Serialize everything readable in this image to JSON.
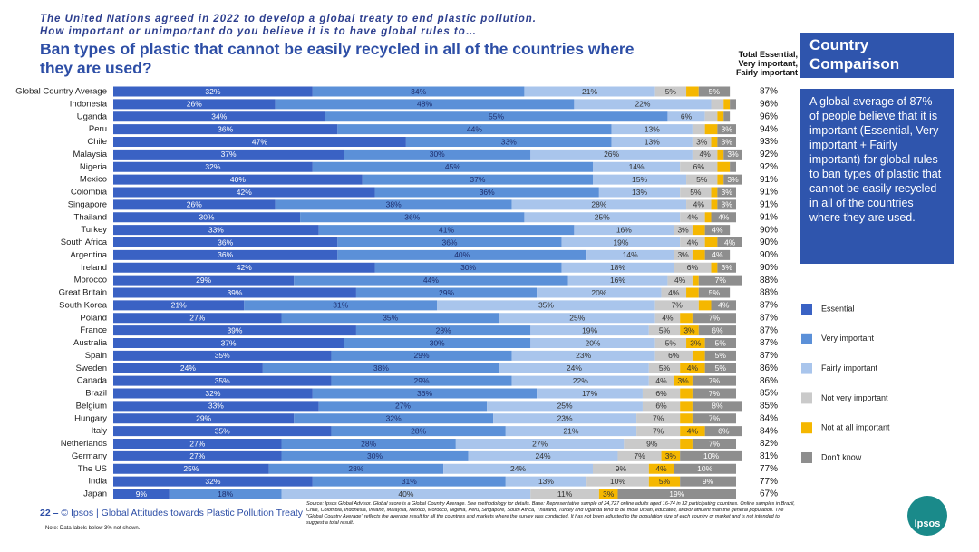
{
  "header": {
    "lines": [
      "The United Nations agreed in 2022 to develop a global treaty to end plastic pollution.",
      "How important or unimportant do you believe it is to have global rules to…"
    ],
    "title": "Ban types of plastic that cannot be easily recycled in all of the countries where they are used?"
  },
  "chart_data": {
    "type": "bar",
    "orientation": "horizontal",
    "stacked": true,
    "categories": [
      "Global Country Average",
      "Indonesia",
      "Uganda",
      "Peru",
      "Chile",
      "Malaysia",
      "Nigeria",
      "Mexico",
      "Colombia",
      "Singapore",
      "Thailand",
      "Turkey",
      "South Africa",
      "Argentina",
      "Ireland",
      "Morocco",
      "Great Britain",
      "South Korea",
      "Poland",
      "France",
      "Australia",
      "Spain",
      "Sweden",
      "Canada",
      "Brazil",
      "Belgium",
      "Hungary",
      "Italy",
      "Netherlands",
      "Germany",
      "The US",
      "India",
      "Japan"
    ],
    "series": [
      {
        "name": "Essential",
        "color": "#3a62c4",
        "label_color": "#ffffff",
        "values": [
          32,
          26,
          34,
          36,
          47,
          37,
          32,
          40,
          42,
          26,
          30,
          33,
          36,
          36,
          42,
          29,
          39,
          21,
          27,
          39,
          37,
          35,
          24,
          35,
          32,
          33,
          29,
          35,
          27,
          27,
          25,
          32,
          9
        ],
        "value_labels": [
          "32%",
          "26%",
          "34%",
          "36%",
          "47%",
          "37%",
          "32%",
          "40%",
          "42%",
          "26%",
          "30%",
          "33%",
          "36%",
          "36%",
          "42%",
          "29%",
          "39%",
          "21%",
          "27%",
          "39%",
          "37%",
          "35%",
          "24%",
          "35%",
          "32%",
          "33%",
          "29%",
          "35%",
          "27%",
          "27%",
          "25%",
          "32%",
          "9%"
        ]
      },
      {
        "name": "Very important",
        "color": "#5b90d8",
        "label_color": "#1f2f6e",
        "values": [
          34,
          48,
          55,
          44,
          33,
          30,
          45,
          37,
          36,
          38,
          36,
          41,
          36,
          40,
          30,
          44,
          29,
          31,
          35,
          28,
          30,
          29,
          38,
          29,
          36,
          27,
          32,
          28,
          28,
          30,
          28,
          31,
          18
        ],
        "value_labels": [
          "34%",
          "48%",
          "55%",
          "44%",
          "33%",
          "30%",
          "45%",
          "37%",
          "36%",
          "38%",
          "36%",
          "41%",
          "36%",
          "40%",
          "30%",
          "44%",
          "29%",
          "31%",
          "35%",
          "28%",
          "30%",
          "29%",
          "38%",
          "29%",
          "36%",
          "27%",
          "32%",
          "28%",
          "28%",
          "30%",
          "28%",
          "31%",
          "18%"
        ]
      },
      {
        "name": "Fairly important",
        "color": "#a9c5ec",
        "label_color": "#333333",
        "values": [
          21,
          22,
          6,
          13,
          13,
          26,
          14,
          15,
          13,
          28,
          25,
          16,
          19,
          14,
          18,
          16,
          20,
          35,
          25,
          19,
          20,
          23,
          24,
          22,
          17,
          25,
          23,
          21,
          27,
          24,
          24,
          13,
          40
        ],
        "value_labels": [
          "21%",
          "22%",
          "6%",
          "13%",
          "13%",
          "26%",
          "14%",
          "15%",
          "13%",
          "28%",
          "25%",
          "16%",
          "19%",
          "14%",
          "18%",
          "16%",
          "20%",
          "35%",
          "25%",
          "19%",
          "20%",
          "23%",
          "24%",
          "22%",
          "17%",
          "25%",
          "23%",
          "21%",
          "27%",
          "24%",
          "24%",
          "13%",
          "40%"
        ]
      },
      {
        "name": "Not very important",
        "color": "#cacaca",
        "label_color": "#333333",
        "values": [
          5,
          2,
          2,
          2,
          3,
          4,
          6,
          5,
          5,
          4,
          4,
          3,
          4,
          3,
          6,
          4,
          4,
          7,
          4,
          5,
          5,
          6,
          5,
          4,
          6,
          6,
          7,
          7,
          9,
          7,
          9,
          10,
          11
        ],
        "value_labels": [
          "5%",
          null,
          null,
          null,
          "3%",
          "4%",
          "6%",
          "5%",
          "5%",
          "4%",
          "4%",
          "3%",
          "4%",
          "3%",
          "6%",
          "4%",
          "4%",
          "7%",
          "4%",
          "5%",
          "5%",
          "6%",
          "5%",
          "4%",
          "6%",
          "6%",
          "7%",
          "7%",
          "9%",
          "7%",
          "9%",
          "10%",
          "11%"
        ]
      },
      {
        "name": "Not at all important",
        "color": "#f5b700",
        "label_color": "#333333",
        "values": [
          2,
          1,
          1,
          2,
          1,
          1,
          2,
          1,
          1,
          1,
          1,
          2,
          2,
          2,
          1,
          1,
          2,
          2,
          2,
          3,
          3,
          2,
          4,
          3,
          2,
          2,
          2,
          4,
          2,
          3,
          4,
          5,
          3
        ],
        "value_labels": [
          null,
          null,
          null,
          null,
          null,
          null,
          null,
          null,
          null,
          null,
          null,
          null,
          null,
          null,
          null,
          null,
          null,
          null,
          null,
          "3%",
          "3%",
          null,
          "4%",
          "3%",
          null,
          null,
          null,
          "4%",
          null,
          "3%",
          "4%",
          "5%",
          "3%"
        ]
      },
      {
        "name": "Don't know",
        "color": "#8e8e8e",
        "label_color": "#ffffff",
        "values": [
          5,
          1,
          1,
          3,
          3,
          3,
          1,
          3,
          3,
          3,
          4,
          4,
          4,
          4,
          3,
          7,
          5,
          4,
          7,
          6,
          5,
          5,
          5,
          7,
          7,
          8,
          7,
          6,
          7,
          10,
          10,
          9,
          19
        ],
        "value_labels": [
          "5%",
          null,
          null,
          "3%",
          "3%",
          "3%",
          null,
          "3%",
          "3%",
          "3%",
          "4%",
          "4%",
          "4%",
          "4%",
          "3%",
          "7%",
          "5%",
          "4%",
          "7%",
          "6%",
          "5%",
          "5%",
          "5%",
          "7%",
          "7%",
          "8%",
          "7%",
          "6%",
          "7%",
          "10%",
          "10%",
          "9%",
          "19%"
        ]
      }
    ],
    "totals": {
      "title": [
        "Total Essential,",
        "Very important,",
        "Fairly important"
      ],
      "values": [
        87,
        96,
        96,
        94,
        93,
        92,
        92,
        91,
        91,
        91,
        91,
        90,
        90,
        90,
        90,
        88,
        88,
        87,
        87,
        87,
        87,
        87,
        86,
        86,
        85,
        85,
        84,
        84,
        82,
        81,
        77,
        77,
        67
      ],
      "value_labels": [
        "87%",
        "96%",
        "96%",
        "94%",
        "93%",
        "92%",
        "92%",
        "91%",
        "91%",
        "91%",
        "91%",
        "90%",
        "90%",
        "90%",
        "90%",
        "88%",
        "88%",
        "87%",
        "87%",
        "87%",
        "87%",
        "87%",
        "86%",
        "86%",
        "85%",
        "85%",
        "84%",
        "84%",
        "82%",
        "81%",
        "77%",
        "77%",
        "67%"
      ]
    }
  },
  "sidebar": {
    "title": [
      "Country",
      "Comparison"
    ],
    "text": "A global average of 87% of people believe that it is important (Essential, Very important + Fairly important) for global rules to ban types of plastic that cannot be easily recycled in all of the countries where they are used."
  },
  "footer": {
    "page": "22 –",
    "credit": "© Ipsos | Global Attitudes towards Plastic Pollution Treaty",
    "note": "Note: Data labels below 3% not shown.",
    "source": "Source: Ipsos Global Advisor. Global score is a Global Country Average. See methodology for details. Base: Representative sample of 24,727 online adults aged 16-74 in 32 participating countries. Online samples in Brazil, Chile, Colombia, Indonesia, Ireland, Malaysia, Mexico, Morocco, Nigeria, Peru, Singapore, South Africa, Thailand, Turkey and Uganda tend to be more urban, educated, and/or affluent than the general population. The \"Global Country Average\" reflects the average result for all the countries and markets where the survey was conducted. It has not been adjusted to the population size of each country or market and is not intended to suggest a total result.",
    "logo": "Ipsos"
  }
}
